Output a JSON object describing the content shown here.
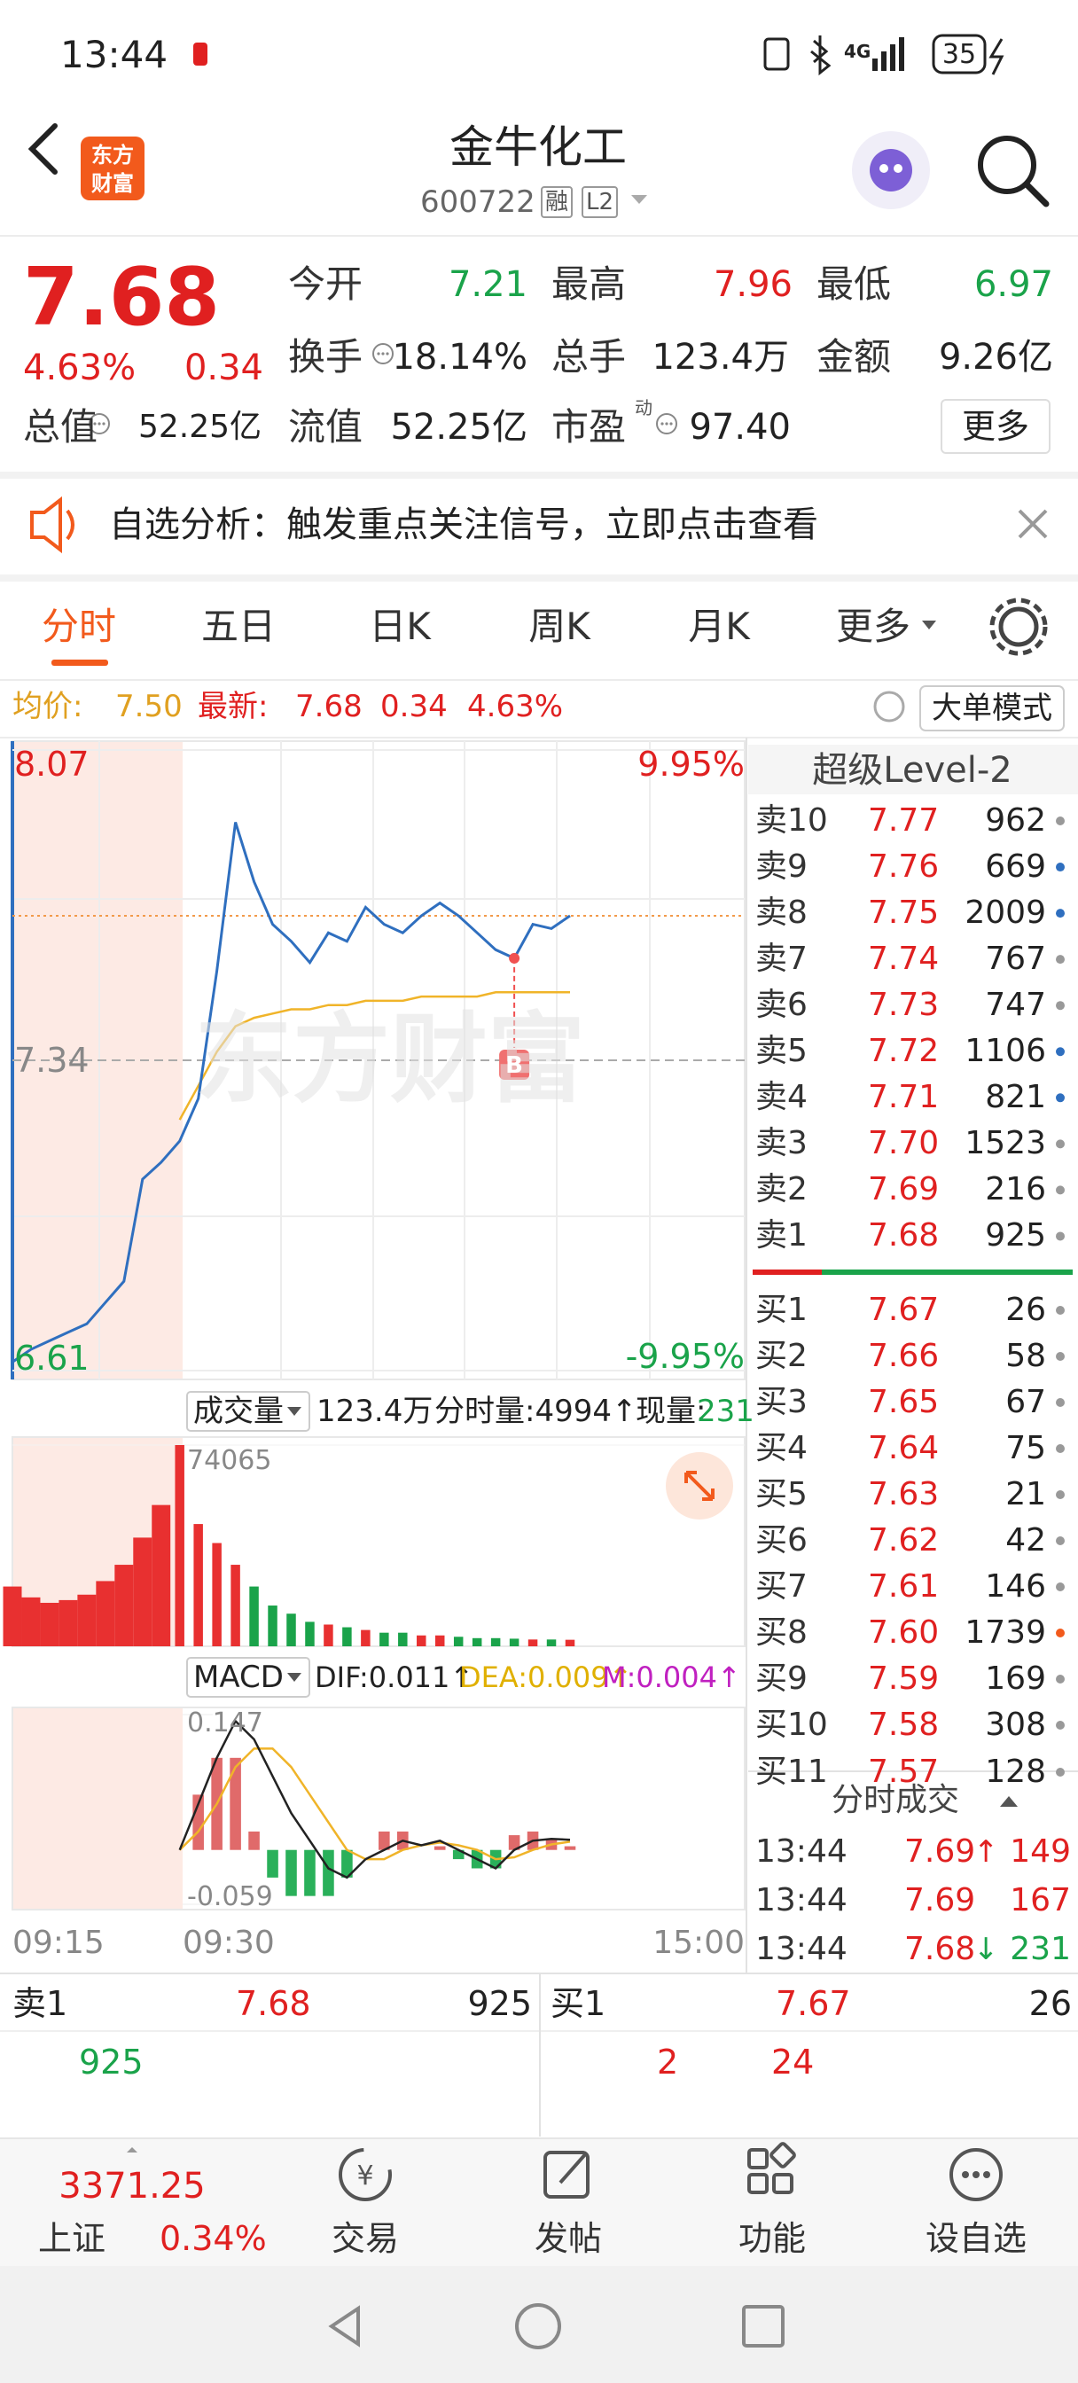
{
  "status": {
    "time": "13:44",
    "network": "4G",
    "battery": "35"
  },
  "header": {
    "logo": [
      "东方",
      "财富"
    ],
    "title": "金牛化工",
    "code": "600722",
    "tags": [
      "融",
      "L2"
    ]
  },
  "quote": {
    "price": "7.68",
    "change_pct": "4.63%",
    "change": "0.34",
    "pe_sup": "动",
    "more": "更多",
    "fields": [
      {
        "label": "今开",
        "value": "7.21"
      },
      {
        "label": "最高",
        "value": "7.96"
      },
      {
        "label": "最低",
        "value": "6.97"
      },
      {
        "label": "换手",
        "value": "18.14%"
      },
      {
        "label": "总手",
        "value": "123.4万"
      },
      {
        "label": "金额",
        "value": "9.26亿"
      },
      {
        "label": "总值",
        "value": "52.25亿"
      },
      {
        "label": "流值",
        "value": "52.25亿"
      },
      {
        "label": "市盈",
        "value": "97.40"
      }
    ]
  },
  "notice": {
    "text": "自选分析：触发重点关注信号，立即点击查看"
  },
  "tabs": [
    "分时",
    "五日",
    "日K",
    "周K",
    "月K",
    "更多"
  ],
  "info": {
    "avg_label": "均价:",
    "avg": "7.50",
    "latest_label": "最新:",
    "latest": "7.68",
    "change": "0.34",
    "change_pct": "4.63%",
    "mode": "大单模式"
  },
  "chart_data": {
    "type": "line",
    "ylim": [
      6.61,
      8.07
    ],
    "yticks": [
      6.61,
      7.34,
      8.07
    ],
    "pct_labels": [
      "-9.95%",
      "9.95%"
    ],
    "watermark": "东方财富",
    "marker": "B",
    "xticks": [
      "09:15",
      "09:30",
      "15:00"
    ],
    "price": {
      "color": "#2f6fbf",
      "values": [
        6.63,
        6.66,
        6.68,
        6.7,
        6.72,
        6.77,
        6.82,
        7.06,
        7.1,
        7.15,
        7.25,
        7.55,
        7.9,
        7.76,
        7.66,
        7.62,
        7.57,
        7.64,
        7.62,
        7.7,
        7.66,
        7.64,
        7.68,
        7.71,
        7.68,
        7.64,
        7.6,
        7.58,
        7.66,
        7.65,
        7.68
      ]
    },
    "avg": {
      "color": "#f0b429",
      "values": [
        null,
        null,
        null,
        null,
        null,
        null,
        null,
        null,
        null,
        7.2,
        7.28,
        7.36,
        7.42,
        7.44,
        7.45,
        7.46,
        7.46,
        7.47,
        7.47,
        7.48,
        7.48,
        7.48,
        7.49,
        7.49,
        7.49,
        7.49,
        7.5,
        7.5,
        7.5,
        7.5,
        7.5
      ]
    },
    "volume": {
      "label": "成交量",
      "total": "123.4万",
      "tick_volume": "分时量:4994↑",
      "current_label": "现量:",
      "current": "231",
      "ylim": [
        0,
        74065
      ],
      "yticks": [
        74065
      ],
      "values": [
        22000,
        18000,
        16000,
        17000,
        19000,
        24000,
        30000,
        40000,
        52000,
        74065,
        45000,
        38000,
        30000,
        22000,
        15000,
        12000,
        9000,
        8000,
        7000,
        6000,
        5000,
        5000,
        4000,
        4000,
        3500,
        3000,
        3000,
        2800,
        2500,
        2500,
        2400
      ]
    },
    "macd": {
      "label": "MACD",
      "dif_label": "DIF:0.011↑",
      "dea_label": "DEA:0.009↑",
      "m_label": "M:0.004↑",
      "ylim": [
        -0.059,
        0.147
      ],
      "yticks": [
        -0.059,
        0.147
      ],
      "dif": [
        null,
        null,
        null,
        null,
        null,
        null,
        null,
        null,
        null,
        0,
        0.05,
        0.1,
        0.14,
        0.12,
        0.08,
        0.04,
        0.01,
        -0.02,
        -0.03,
        -0.01,
        0,
        0.01,
        0.005,
        0.01,
        0,
        -0.01,
        -0.02,
        0,
        0.01,
        0.012,
        0.011
      ],
      "dea": [
        null,
        null,
        null,
        null,
        null,
        null,
        null,
        null,
        null,
        0,
        0.02,
        0.05,
        0.09,
        0.11,
        0.11,
        0.09,
        0.06,
        0.03,
        0,
        -0.01,
        -0.01,
        0,
        0.005,
        0.008,
        0.005,
        0,
        -0.01,
        -0.008,
        0,
        0.006,
        0.009
      ],
      "hist": [
        null,
        null,
        null,
        null,
        null,
        null,
        null,
        null,
        null,
        0,
        0.06,
        0.1,
        0.1,
        0.02,
        -0.03,
        -0.05,
        -0.05,
        -0.05,
        -0.03,
        0,
        0.02,
        0.02,
        0,
        0.004,
        -0.01,
        -0.02,
        -0.02,
        0.016,
        0.02,
        0.012,
        0.004
      ]
    }
  },
  "orderbook": {
    "title": "超级Level-2",
    "asks": [
      {
        "label": "卖10",
        "price": "7.77",
        "volume": "962"
      },
      {
        "label": "卖9",
        "price": "7.76",
        "volume": "669"
      },
      {
        "label": "卖8",
        "price": "7.75",
        "volume": "2009"
      },
      {
        "label": "卖7",
        "price": "7.74",
        "volume": "767"
      },
      {
        "label": "卖6",
        "price": "7.73",
        "volume": "747"
      },
      {
        "label": "卖5",
        "price": "7.72",
        "volume": "1106"
      },
      {
        "label": "卖4",
        "price": "7.71",
        "volume": "821"
      },
      {
        "label": "卖3",
        "price": "7.70",
        "volume": "1523"
      },
      {
        "label": "卖2",
        "price": "7.69",
        "volume": "216"
      },
      {
        "label": "卖1",
        "price": "7.68",
        "volume": "925"
      }
    ],
    "bids": [
      {
        "label": "买1",
        "price": "7.67",
        "volume": "26"
      },
      {
        "label": "买2",
        "price": "7.66",
        "volume": "58"
      },
      {
        "label": "买3",
        "price": "7.65",
        "volume": "67"
      },
      {
        "label": "买4",
        "price": "7.64",
        "volume": "75"
      },
      {
        "label": "买5",
        "price": "7.63",
        "volume": "21"
      },
      {
        "label": "买6",
        "price": "7.62",
        "volume": "42"
      },
      {
        "label": "买7",
        "price": "7.61",
        "volume": "146"
      },
      {
        "label": "买8",
        "price": "7.60",
        "volume": "1739"
      },
      {
        "label": "买9",
        "price": "7.59",
        "volume": "169"
      },
      {
        "label": "买10",
        "price": "7.58",
        "volume": "308"
      },
      {
        "label": "买11",
        "price": "7.57",
        "volume": "128"
      }
    ],
    "trades_title": "分时成交",
    "trades": [
      {
        "time": "13:44",
        "price": "7.69",
        "arrow": "↑",
        "volume": "149"
      },
      {
        "time": "13:44",
        "price": "7.69",
        "arrow": "",
        "volume": "167"
      },
      {
        "time": "13:44",
        "price": "7.68",
        "arrow": "↓",
        "volume": "231"
      }
    ]
  },
  "bottom": {
    "ask_label": "卖1",
    "ask_price": "7.68",
    "ask_volume": "925",
    "bid_label": "买1",
    "bid_price": "7.67",
    "bid_volume": "26",
    "ask_detail": [
      "925"
    ],
    "bid_detail": [
      "2",
      "24"
    ]
  },
  "nav": {
    "index_value": "3371.25",
    "index_name": "上证",
    "index_pct": "0.34%",
    "items": [
      "交易",
      "发帖",
      "功能",
      "设自选"
    ]
  }
}
